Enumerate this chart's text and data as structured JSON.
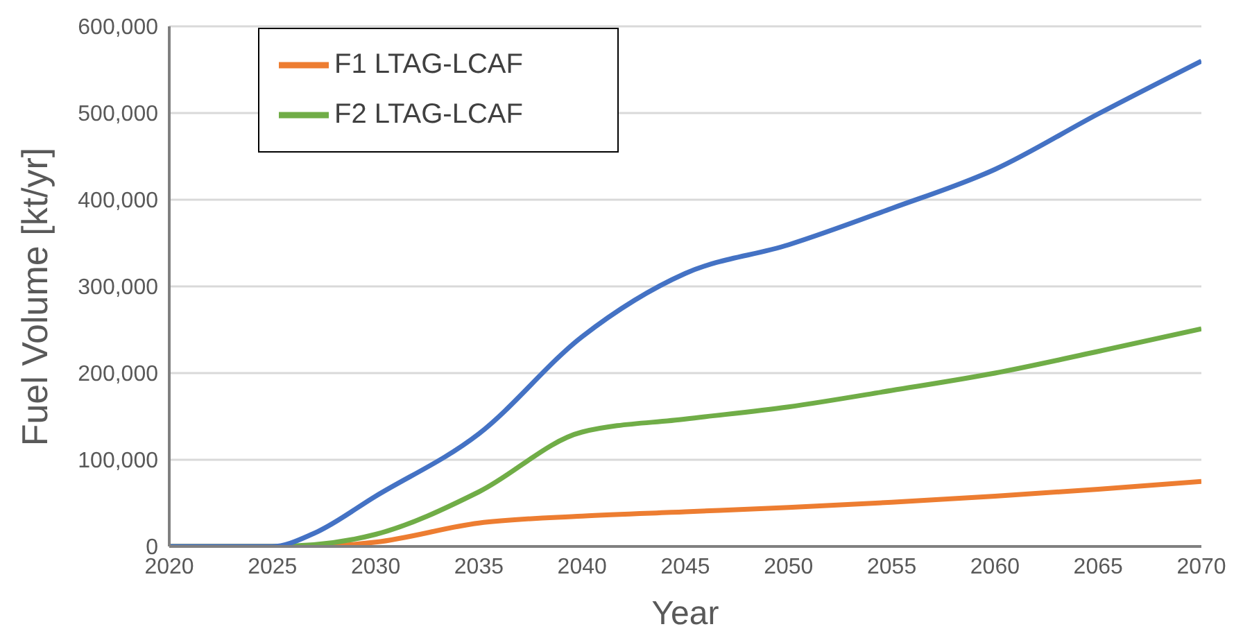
{
  "chart_data": {
    "type": "line",
    "xlabel": "Year",
    "ylabel": "Fuel Volume [kt/yr]",
    "x": [
      2020,
      2025,
      2027,
      2030,
      2035,
      2040,
      2045,
      2050,
      2055,
      2060,
      2065,
      2070
    ],
    "series": [
      {
        "name": "F1 LTAG-LCAF",
        "color": "#ed7d31",
        "values": [
          0,
          0,
          0,
          5000,
          27000,
          35000,
          40000,
          45000,
          51000,
          58000,
          66000,
          75000
        ]
      },
      {
        "name": "F2 LTAG-LCAF",
        "color": "#70ad47",
        "values": [
          0,
          0,
          2000,
          14000,
          63000,
          132000,
          147000,
          161000,
          180000,
          200000,
          225000,
          251000
        ]
      },
      {
        "color": "#4472c4",
        "values": [
          0,
          0,
          15000,
          58000,
          130000,
          242000,
          315000,
          348000,
          390000,
          435000,
          499000,
          560000
        ]
      }
    ],
    "xlim": [
      2020,
      2070
    ],
    "xticks": [
      2020,
      2025,
      2030,
      2035,
      2040,
      2045,
      2050,
      2055,
      2060,
      2065,
      2070
    ],
    "ylim": [
      0,
      600000
    ],
    "yticks": [
      {
        "value": 0,
        "label": "0"
      },
      {
        "value": 100000,
        "label": "100,000"
      },
      {
        "value": 200000,
        "label": "200,000"
      },
      {
        "value": 300000,
        "label": "300,000"
      },
      {
        "value": 400000,
        "label": "400,000"
      },
      {
        "value": 500000,
        "label": "500,000"
      },
      {
        "value": 600000,
        "label": "600,000"
      }
    ],
    "grid": "y",
    "legend": "top left",
    "marker": "none",
    "line_style": "solid"
  }
}
